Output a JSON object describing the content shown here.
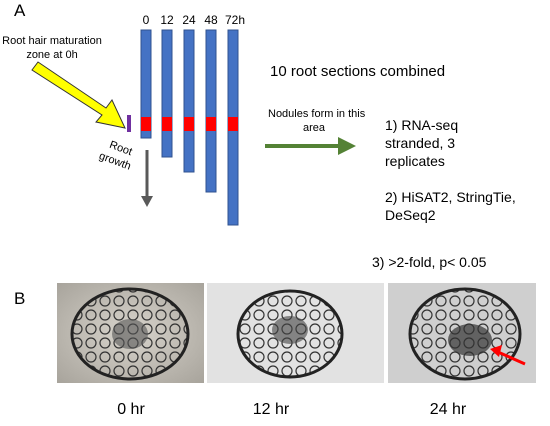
{
  "panel_a": {
    "label": "A",
    "time_labels": [
      "0",
      "12",
      "24",
      "48",
      "72h"
    ],
    "root_hair_label": [
      "Root hair maturation",
      "zone at 0h"
    ],
    "growth_label": [
      "Root",
      "growth"
    ],
    "nodule_label": [
      "Nodules form in this",
      "area"
    ],
    "combined_label": "10 root sections combined",
    "steps": [
      [
        "1) RNA-seq",
        "stranded, 3",
        "replicates"
      ],
      [
        "2) HiSAT2, StringTie,",
        "DeSeq2"
      ],
      [
        "3) >2-fold, p< 0.05"
      ]
    ]
  },
  "panel_b": {
    "label": "B",
    "images": [
      "0 hr",
      "12 hr",
      "24 hr"
    ]
  }
}
